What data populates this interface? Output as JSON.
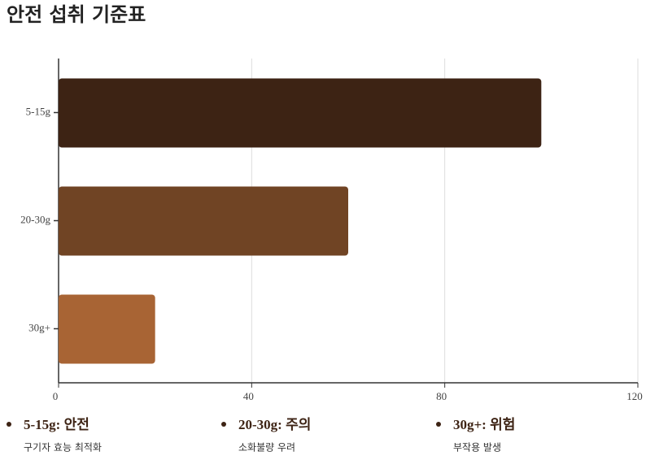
{
  "chart_data": {
    "type": "barh",
    "title": "안전 섭취 기준표",
    "categories": [
      "5-15g",
      "20-30g",
      "30g+"
    ],
    "values": [
      100,
      60,
      20
    ],
    "colors": [
      "#3d2314",
      "#704424",
      "#a86434"
    ],
    "xlim": [
      0,
      120
    ],
    "xticks": [
      0,
      40,
      80,
      120
    ],
    "grid": true,
    "notes": [
      {
        "title": "5-15g: 안전",
        "text": "구기자 효능 최적화"
      },
      {
        "title": "20-30g: 주의",
        "text": "소화불량 우려"
      },
      {
        "title": "30g+: 위험",
        "text": "부작용 발생"
      }
    ]
  }
}
